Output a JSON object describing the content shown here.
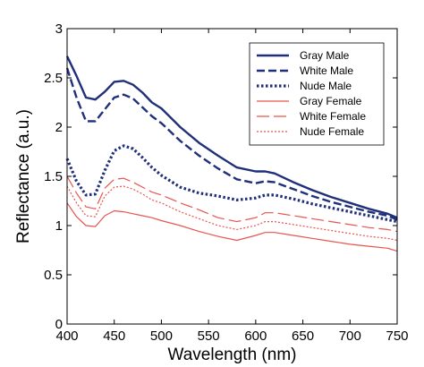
{
  "chart_data": {
    "type": "line",
    "title": "",
    "xlabel": "Wavelength (nm)",
    "ylabel": "Reflectance (a.u.)",
    "xlim": [
      400,
      750
    ],
    "ylim": [
      0,
      3
    ],
    "xticks": [
      "400",
      "450",
      "500",
      "550",
      "600",
      "650",
      "700",
      "750"
    ],
    "yticks": [
      "0",
      "0.5",
      "1",
      "1.5",
      "2",
      "2.5",
      "3"
    ],
    "grid": false,
    "legend_position": "top-right",
    "x": [
      400,
      410,
      420,
      430,
      440,
      450,
      460,
      470,
      480,
      490,
      500,
      520,
      540,
      560,
      580,
      600,
      610,
      620,
      640,
      660,
      680,
      700,
      720,
      740,
      750
    ],
    "series": [
      {
        "name": "Gray Male",
        "color": "#1f2f7a",
        "style": "solid",
        "values": [
          2.72,
          2.52,
          2.3,
          2.28,
          2.36,
          2.46,
          2.47,
          2.43,
          2.35,
          2.25,
          2.19,
          2.0,
          1.84,
          1.71,
          1.59,
          1.55,
          1.55,
          1.53,
          1.44,
          1.36,
          1.29,
          1.23,
          1.17,
          1.12,
          1.08
        ]
      },
      {
        "name": "White Male",
        "color": "#1f2f7a",
        "style": "dashed",
        "values": [
          2.6,
          2.3,
          2.06,
          2.06,
          2.18,
          2.3,
          2.33,
          2.29,
          2.2,
          2.11,
          2.04,
          1.86,
          1.71,
          1.58,
          1.47,
          1.43,
          1.45,
          1.44,
          1.37,
          1.3,
          1.24,
          1.19,
          1.14,
          1.1,
          1.06
        ]
      },
      {
        "name": "Nude Male",
        "color": "#1f2f7a",
        "style": "dotted",
        "values": [
          1.68,
          1.45,
          1.31,
          1.32,
          1.56,
          1.76,
          1.81,
          1.78,
          1.69,
          1.59,
          1.51,
          1.39,
          1.33,
          1.3,
          1.26,
          1.28,
          1.31,
          1.31,
          1.27,
          1.22,
          1.18,
          1.14,
          1.1,
          1.06,
          1.04
        ]
      },
      {
        "name": "Gray Female",
        "color": "#e8544e",
        "style": "solid",
        "values": [
          1.23,
          1.09,
          1.0,
          0.99,
          1.1,
          1.15,
          1.14,
          1.12,
          1.1,
          1.08,
          1.05,
          1.0,
          0.94,
          0.89,
          0.85,
          0.9,
          0.93,
          0.93,
          0.9,
          0.87,
          0.84,
          0.81,
          0.79,
          0.77,
          0.74
        ]
      },
      {
        "name": "White Female",
        "color": "#e8544e",
        "style": "longdash",
        "values": [
          1.5,
          1.33,
          1.19,
          1.17,
          1.38,
          1.47,
          1.48,
          1.44,
          1.39,
          1.34,
          1.31,
          1.23,
          1.16,
          1.08,
          1.04,
          1.08,
          1.13,
          1.13,
          1.1,
          1.07,
          1.04,
          1.01,
          0.98,
          0.96,
          0.94
        ]
      },
      {
        "name": "Nude Female",
        "color": "#e8544e",
        "style": "thin-dotted",
        "values": [
          1.4,
          1.23,
          1.1,
          1.09,
          1.3,
          1.39,
          1.4,
          1.37,
          1.32,
          1.26,
          1.23,
          1.14,
          1.07,
          1.0,
          0.96,
          1.0,
          1.04,
          1.04,
          1.01,
          0.98,
          0.95,
          0.92,
          0.89,
          0.87,
          0.85
        ]
      }
    ]
  }
}
